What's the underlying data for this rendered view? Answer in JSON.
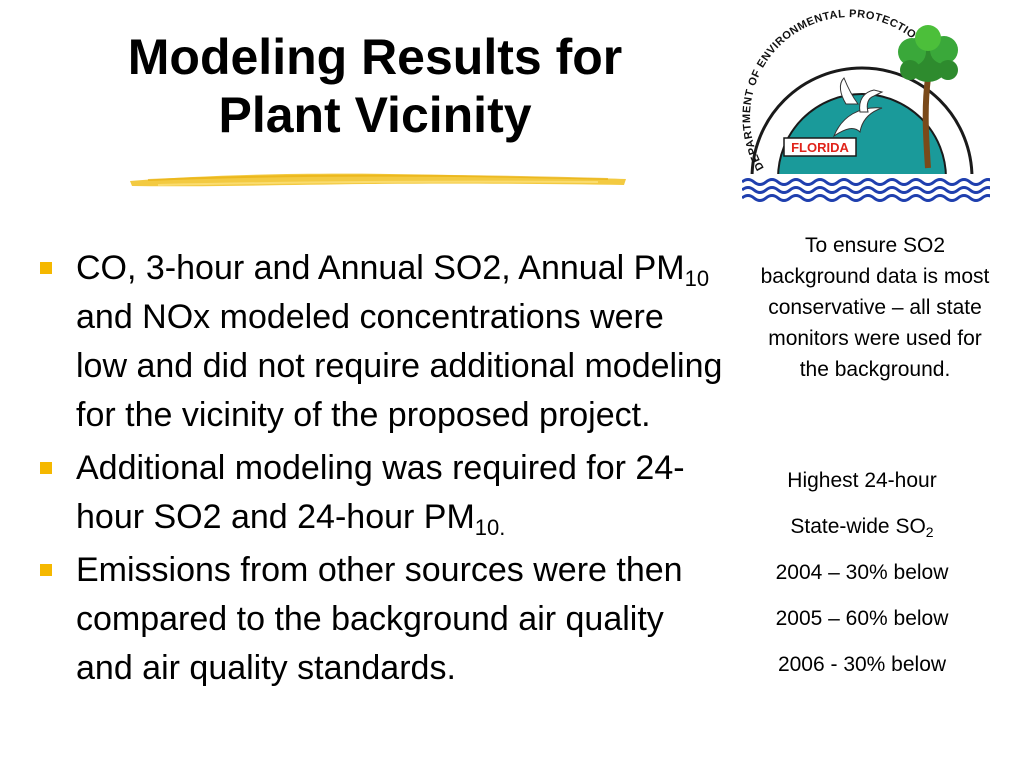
{
  "slide": {
    "title_line1": "Modeling Results for",
    "title_line2": "Plant Vicinity"
  },
  "logo": {
    "arc_text": "DEPARTMENT OF ENVIRONMENTAL PROTECTION",
    "state_label": "FLORIDA",
    "icon": "fdep-seal"
  },
  "bullets": [
    {
      "part1": "CO, 3-hour and Annual SO2, Annual PM",
      "sub1": "10",
      "part2": " and NOx modeled concentrations were low and did not require additional modeling for the vicinity of the proposed project."
    },
    {
      "part1": "Additional modeling was required for 24-hour SO2 and 24-hour PM",
      "sub1": "10."
    },
    {
      "part1": "Emissions from other sources were then compared to the background air quality and air quality standards."
    }
  ],
  "side_note": "To ensure SO2 background data is most conservative – all state monitors were used for the background.",
  "stats": {
    "heading": "Highest 24-hour",
    "subheading_main": "State-wide SO",
    "subheading_sub": "2",
    "rows": [
      "2004 – 30% below",
      "2005 – 60% below",
      "2006 -  30% below"
    ]
  },
  "colors": {
    "bullet": "#f5b800",
    "underline": "#f2c42c",
    "seal_teal": "#1a9a9a",
    "seal_water": "#1f3fae",
    "florida_label": "#e0231a"
  }
}
